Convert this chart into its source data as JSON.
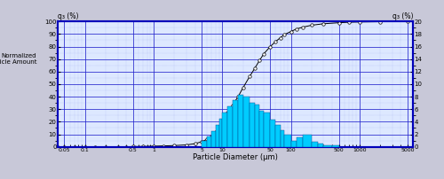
{
  "title": "",
  "xlabel": "Particle Diameter (μm)",
  "ylabel_left": "q₃ (%)",
  "ylabel_right": "q₃ (%)",
  "ylabel_text": "Normalized\nParticle Amount",
  "xlim_log": [
    0.04,
    6000
  ],
  "ylim_left": [
    0,
    100
  ],
  "ylim_right": [
    0,
    20
  ],
  "xtick_labels": [
    "0.05",
    "0.1",
    "0.5",
    "1",
    "5",
    "10",
    "50",
    "100",
    "500",
    "1000",
    "5000"
  ],
  "xtick_values": [
    0.05,
    0.1,
    0.5,
    1,
    5,
    10,
    50,
    100,
    500,
    1000,
    5000
  ],
  "yticks_left": [
    0,
    10,
    20,
    30,
    40,
    50,
    60,
    70,
    80,
    90,
    100
  ],
  "yticks_right": [
    0,
    2,
    4,
    6,
    8,
    10,
    12,
    14,
    16,
    18,
    20
  ],
  "fig_bg": "#c8c8d8",
  "plot_bg": "#dde8ff",
  "bar_color": "#00ccff",
  "bar_edge_color": "#004488",
  "line_color": "black",
  "marker_color": "white",
  "marker_edge_color": "black",
  "border_color": "#0000bb",
  "grid_color_major": "#2222cc",
  "grid_color_minor": "#8899ee",
  "bar_bins_left": [
    5.0,
    6.0,
    7.0,
    8.0,
    9.0,
    10.0,
    12.0,
    14.0,
    17.0,
    20.0,
    25.0,
    30.0,
    35.0,
    40.0,
    50.0,
    60.0,
    70.0,
    80.0,
    100.0,
    120.0,
    150.0,
    200.0,
    250.0,
    300.0,
    400.0,
    500.0
  ],
  "bar_heights_right": [
    1.0,
    1.6,
    2.5,
    3.5,
    4.5,
    5.5,
    6.5,
    7.5,
    8.3,
    8.0,
    7.0,
    6.8,
    5.8,
    5.4,
    4.3,
    3.5,
    2.7,
    2.0,
    1.0,
    1.5,
    2.0,
    0.8,
    0.5,
    0.3,
    0.2,
    0.1
  ],
  "cum_x": [
    0.04,
    0.05,
    0.07,
    0.1,
    0.14,
    0.2,
    0.3,
    0.4,
    0.5,
    0.7,
    1.0,
    1.4,
    2.0,
    3.0,
    4.0,
    5.0,
    6.0,
    7.0,
    8.0,
    9.0,
    10.0,
    12.0,
    14.0,
    17.0,
    20.0,
    25.0,
    30.0,
    35.0,
    40.0,
    50.0,
    60.0,
    70.0,
    80.0,
    100.0,
    120.0,
    150.0,
    200.0,
    300.0,
    500.0,
    700.0,
    1000.0,
    2000.0,
    5000.0
  ],
  "cum_y": [
    0,
    0,
    0,
    0,
    0,
    0,
    0,
    0,
    0.2,
    0.3,
    0.5,
    0.7,
    1.0,
    1.5,
    2.5,
    4.0,
    6.0,
    8.5,
    12.0,
    16.0,
    21.0,
    27.0,
    33.0,
    40.0,
    47.0,
    56.0,
    63.0,
    69.0,
    74.0,
    80.0,
    84.0,
    87.0,
    89.5,
    92.0,
    94.0,
    95.5,
    97.0,
    98.2,
    99.0,
    99.4,
    99.6,
    99.8,
    100.0
  ]
}
